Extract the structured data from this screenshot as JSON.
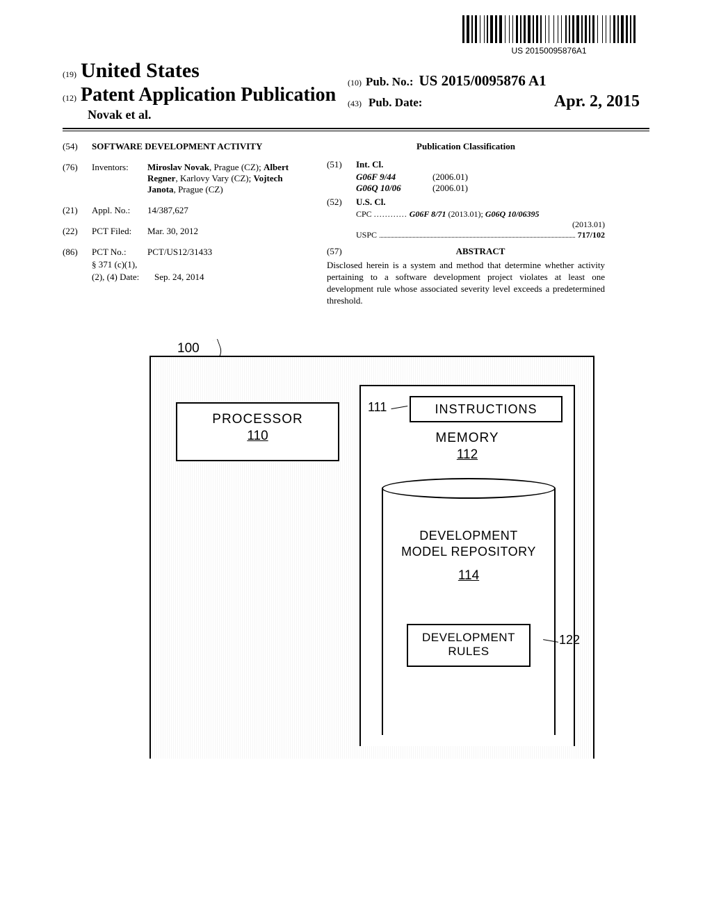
{
  "barcode": {
    "number": "US 20150095876A1",
    "bar_widths": [
      3,
      1,
      4,
      1,
      2,
      1,
      3,
      2,
      1,
      3,
      1,
      1,
      2,
      1,
      4,
      1,
      3,
      1,
      4,
      2,
      1,
      3,
      1,
      2,
      1,
      2,
      3,
      1,
      2,
      1,
      3,
      1,
      4,
      1,
      2,
      1,
      3,
      1,
      2,
      3,
      1,
      2,
      1,
      4,
      1,
      3,
      1,
      2,
      1,
      3,
      2,
      1,
      2,
      1,
      3,
      1,
      4,
      1,
      2,
      1,
      3,
      1,
      2,
      1,
      3,
      2,
      1,
      4,
      1,
      2,
      1,
      3,
      1,
      2,
      3,
      1,
      2,
      1,
      4,
      1,
      3,
      1,
      2,
      1,
      3
    ]
  },
  "header": {
    "code19": "(19)",
    "united_states": "United States",
    "code12": "(12)",
    "pub_title": "Patent Application Publication",
    "inventor_short": "Novak et al.",
    "code10": "(10)",
    "pub_no_label": "Pub. No.:",
    "pub_no": "US 2015/0095876 A1",
    "code43": "(43)",
    "pub_date_label": "Pub. Date:",
    "pub_date": "Apr. 2, 2015"
  },
  "left": {
    "f54": {
      "code": "(54)",
      "value": "SOFTWARE DEVELOPMENT ACTIVITY"
    },
    "f76": {
      "code": "(76)",
      "label": "Inventors:",
      "line1a": "Miroslav Novak",
      "line1b": ", Prague (CZ); ",
      "line1c": "Albert Regner",
      "line1d": ", Karlovy Vary (CZ); ",
      "line1e": "Vojtech Janota",
      "line1f": ", Prague (CZ)"
    },
    "f21": {
      "code": "(21)",
      "label": "Appl. No.:",
      "value": "14/387,627"
    },
    "f22": {
      "code": "(22)",
      "label": "PCT Filed:",
      "value": "Mar. 30, 2012"
    },
    "f86": {
      "code": "(86)",
      "label": "PCT No.:",
      "value": "PCT/US12/31433",
      "sub1": "§ 371 (c)(1),",
      "sub2_label": "(2), (4) Date:",
      "sub2_value": "Sep. 24, 2014"
    }
  },
  "right": {
    "classification_heading": "Publication Classification",
    "f51": {
      "code": "(51)",
      "label": "Int. Cl.",
      "rows": [
        {
          "key": "G06F 9/44",
          "val": "(2006.01)"
        },
        {
          "key": "G06Q 10/06",
          "val": "(2006.01)"
        }
      ]
    },
    "f52": {
      "code": "(52)",
      "label": "U.S. Cl.",
      "cpc_prefix": "CPC ",
      "cpc_dots": "............",
      "cpc_a": "G06F 8/71",
      "cpc_a_yr": " (2013.01); ",
      "cpc_b": "G06Q 10/06395",
      "cpc_b_yr": "(2013.01)",
      "uspc_prefix": "USPC",
      "uspc_val": "717/102"
    },
    "f57": {
      "code": "(57)",
      "heading": "ABSTRACT",
      "text": "Disclosed herein is a system and method that determine whether activity pertaining to a software development project violates at least one development rule whose associated severity level exceeds a predetermined threshold."
    }
  },
  "figure": {
    "label_100": "100",
    "processor": "PROCESSOR",
    "processor_num": "110",
    "instructions": "INSTRUCTIONS",
    "label_111": "111",
    "memory": "MEMORY",
    "memory_num": "112",
    "repo_line1": "DEVELOPMENT",
    "repo_line2": "MODEL REPOSITORY",
    "repo_num": "114",
    "rules_line1": "DEVELOPMENT",
    "rules_line2": "RULES",
    "label_122": "122"
  }
}
